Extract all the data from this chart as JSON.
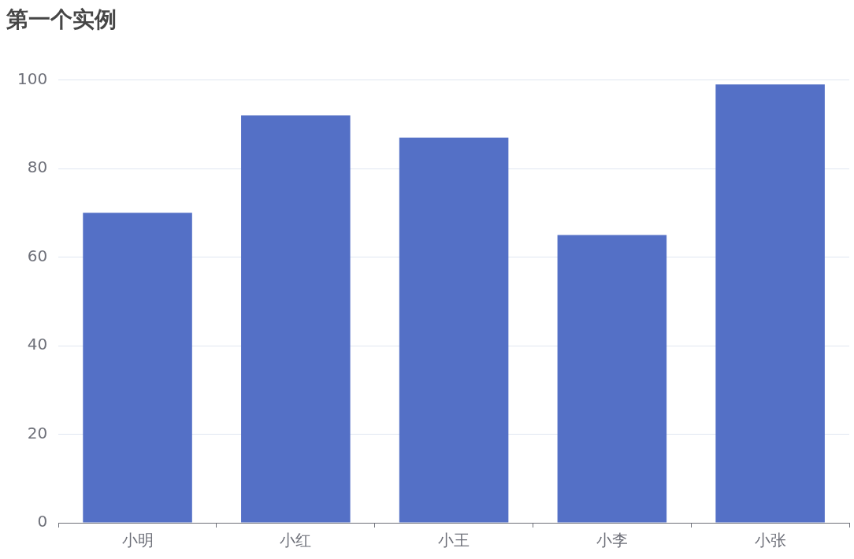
{
  "chart_data": {
    "type": "bar",
    "title": "第一个实例",
    "categories": [
      "小明",
      "小红",
      "小王",
      "小李",
      "小张"
    ],
    "values": [
      70,
      92,
      87,
      65,
      99
    ],
    "color": "#5470c6",
    "ylim": [
      0,
      100
    ],
    "yticks": [
      0,
      20,
      40,
      60,
      80,
      100
    ],
    "grid": "y",
    "legend": false
  }
}
